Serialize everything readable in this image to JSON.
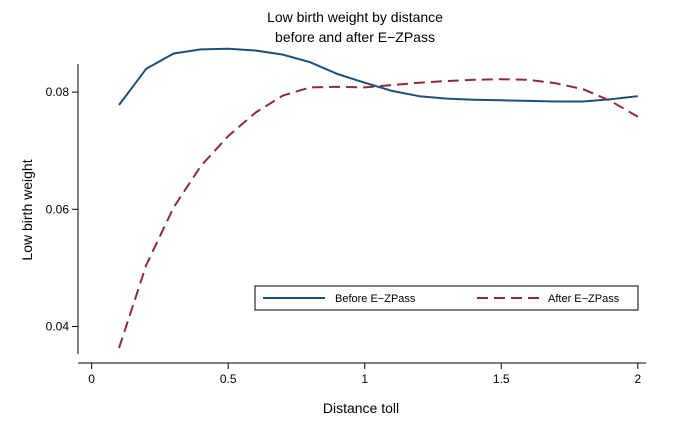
{
  "chart_data": {
    "type": "line",
    "title": [
      "Low birth weight by distance",
      "before and after E−ZPass"
    ],
    "xlabel": "Distance toll",
    "ylabel": "Low birth weight",
    "xlim": [
      -0.05,
      2.03
    ],
    "ylim": [
      0.0353,
      0.0848
    ],
    "x_ticks": [
      0,
      0.5,
      1,
      1.5,
      2
    ],
    "x_tick_labels": [
      "0",
      "0.5",
      "1",
      "1.5",
      "2"
    ],
    "y_ticks": [
      0.04,
      0.06,
      0.08
    ],
    "y_tick_labels": [
      "0.04",
      "0.06",
      "0.08"
    ],
    "grid": false,
    "legend_position": "bottom-right",
    "series": [
      {
        "name": "Before E−ZPass",
        "color": "#1f4e79",
        "style": "solid",
        "x": [
          0.1,
          0.2,
          0.3,
          0.4,
          0.5,
          0.6,
          0.7,
          0.8,
          0.9,
          1.0,
          1.1,
          1.2,
          1.3,
          1.4,
          1.5,
          1.6,
          1.7,
          1.8,
          1.9,
          2.0
        ],
        "y": [
          0.0778,
          0.084,
          0.0866,
          0.0873,
          0.0874,
          0.0871,
          0.0864,
          0.0851,
          0.0831,
          0.0816,
          0.0802,
          0.0793,
          0.0789,
          0.0787,
          0.0786,
          0.0785,
          0.0784,
          0.0784,
          0.0788,
          0.0793
        ]
      },
      {
        "name": "After E−ZPass",
        "color": "#8b2c3a",
        "style": "dashed",
        "x": [
          0.1,
          0.2,
          0.3,
          0.4,
          0.5,
          0.6,
          0.7,
          0.8,
          0.9,
          1.0,
          1.1,
          1.2,
          1.3,
          1.4,
          1.5,
          1.6,
          1.7,
          1.8,
          1.9,
          2.0
        ],
        "y": [
          0.0363,
          0.0505,
          0.0603,
          0.0674,
          0.0725,
          0.0765,
          0.0794,
          0.0808,
          0.0809,
          0.0808,
          0.0812,
          0.0816,
          0.0819,
          0.0821,
          0.0822,
          0.0821,
          0.0815,
          0.0805,
          0.0785,
          0.0758
        ]
      }
    ]
  }
}
